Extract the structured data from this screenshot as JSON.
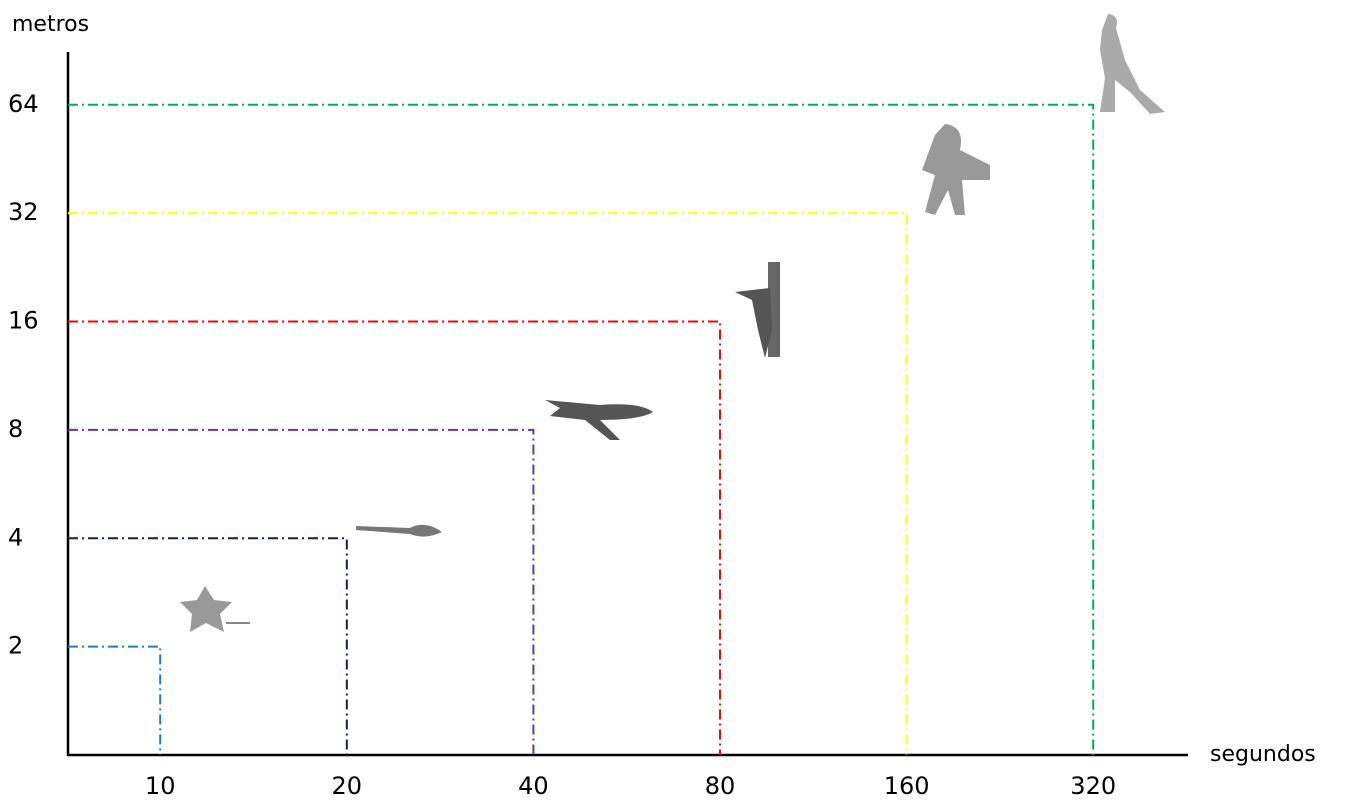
{
  "chart_data": {
    "type": "step",
    "x_label": "segundos",
    "y_label": "metros",
    "x": [
      10,
      20,
      40,
      80,
      160,
      320
    ],
    "values": [
      2,
      4,
      8,
      16,
      32,
      64
    ],
    "colors": [
      "#1a7fc1",
      "#0d2450",
      "#7030a0",
      "#ff0000",
      "#ffff00",
      "#00b050"
    ],
    "xlim": [
      7.1,
      450
    ],
    "ylim": [
      1,
      88
    ],
    "xticks": [
      10,
      20,
      40,
      80,
      160,
      320
    ],
    "yticks": [
      2,
      4,
      8,
      16,
      32,
      64
    ],
    "log_scale_x": true,
    "log_scale_y": true,
    "grid": false
  }
}
